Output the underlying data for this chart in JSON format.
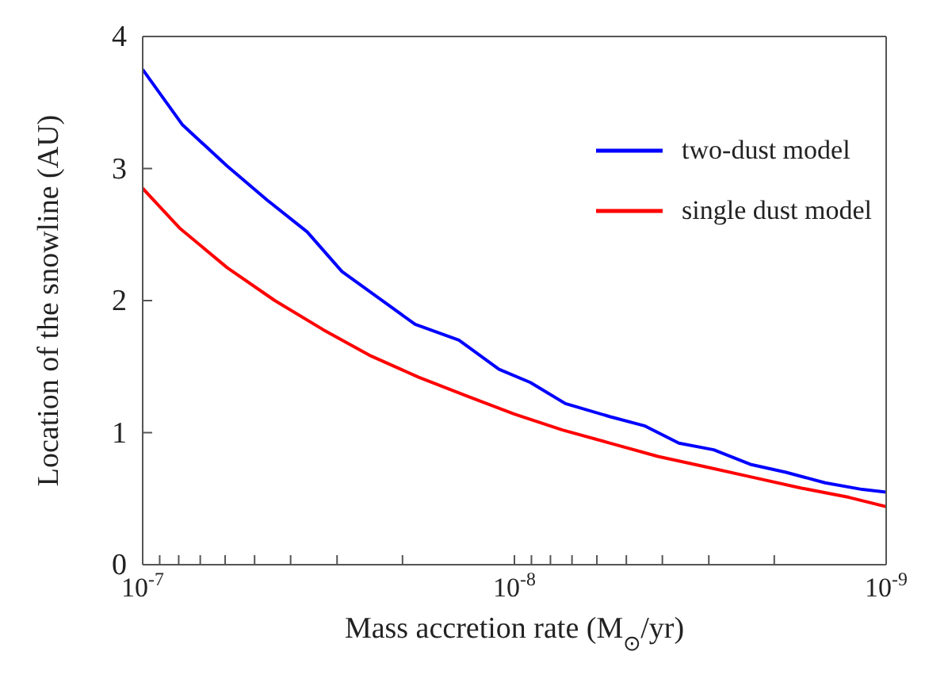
{
  "chart_data": {
    "type": "line",
    "xlabel": "Mass accretion rate (M$_{⊙}$/yr)",
    "ylabel": "Location of the snowline (AU)",
    "log": "x",
    "xlim": [
      1e-07,
      1e-09
    ],
    "xticks": [
      {
        "value": 1e-07,
        "label": "10$^{-7}$"
      },
      {
        "value": 9e-08,
        "label": null
      },
      {
        "value": 8e-08,
        "label": null
      },
      {
        "value": 7e-08,
        "label": null
      },
      {
        "value": 6e-08,
        "label": null
      },
      {
        "value": 5e-08,
        "label": null
      },
      {
        "value": 4e-08,
        "label": null
      },
      {
        "value": 3e-08,
        "label": null
      },
      {
        "value": 2e-08,
        "label": null
      },
      {
        "value": 1e-08,
        "label": "10$^{-8}$"
      },
      {
        "value": 9e-09,
        "label": null
      },
      {
        "value": 8e-09,
        "label": null
      },
      {
        "value": 7e-09,
        "label": null
      },
      {
        "value": 6e-09,
        "label": null
      },
      {
        "value": 5e-09,
        "label": null
      },
      {
        "value": 4e-09,
        "label": null
      },
      {
        "value": 3e-09,
        "label": null
      },
      {
        "value": 2e-09,
        "label": null
      },
      {
        "value": 1e-09,
        "label": "10$^{-9}$"
      }
    ],
    "ylim": [
      0,
      4
    ],
    "yticks": [
      0,
      1,
      2,
      3,
      4
    ],
    "grid": false,
    "legend": "top right",
    "marker": "none",
    "line_style": "solid",
    "series": [
      {
        "name": "two-dust model",
        "color": "#0000ff",
        "x": [
          1e-07,
          7.81e-08,
          5.93e-08,
          4.62e-08,
          3.61e-08,
          2.91e-08,
          2.32e-08,
          1.85e-08,
          1.41e-08,
          1.1e-08,
          9.06e-09,
          7.29e-09,
          5.52e-09,
          4.45e-09,
          3.61e-09,
          2.91e-09,
          2.32e-09,
          1.86e-09,
          1.46e-09,
          1.16e-09,
          1e-09
        ],
        "values": [
          3.75,
          3.33,
          3.02,
          2.76,
          2.52,
          2.22,
          2.02,
          1.82,
          1.7,
          1.48,
          1.38,
          1.22,
          1.12,
          1.05,
          0.92,
          0.87,
          0.76,
          0.7,
          0.62,
          0.57,
          0.55
        ]
      },
      {
        "name": "single dust model",
        "color": "#ff0000",
        "x": [
          1e-07,
          7.96e-08,
          5.93e-08,
          4.41e-08,
          3.27e-08,
          2.43e-08,
          1.81e-08,
          1.35e-08,
          1e-08,
          7.43e-09,
          5.52e-09,
          4.11e-09,
          3.05e-09,
          2.27e-09,
          1.69e-09,
          1.26e-09,
          1e-09
        ],
        "values": [
          2.85,
          2.55,
          2.25,
          2.0,
          1.78,
          1.58,
          1.42,
          1.28,
          1.14,
          1.02,
          0.92,
          0.82,
          0.74,
          0.66,
          0.58,
          0.51,
          0.44
        ]
      }
    ]
  }
}
